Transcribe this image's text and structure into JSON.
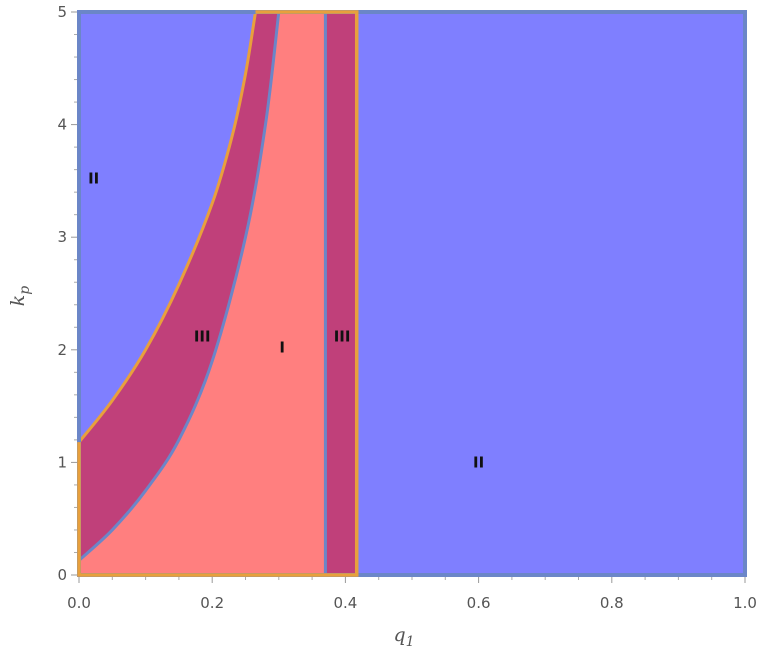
{
  "chart_data": {
    "type": "region",
    "xlabel": "q",
    "xlabel_sub": "1",
    "ylabel": "k",
    "ylabel_sub": "p",
    "xlim": [
      0,
      1
    ],
    "ylim": [
      0,
      5
    ],
    "x_ticks": [
      {
        "value": 0,
        "label": "0.0"
      },
      {
        "value": 0.2,
        "label": "0.2"
      },
      {
        "value": 0.4,
        "label": "0.4"
      },
      {
        "value": 0.6,
        "label": "0.6"
      },
      {
        "value": 0.8,
        "label": "0.8"
      },
      {
        "value": 1.0,
        "label": "1.0"
      }
    ],
    "y_ticks": [
      {
        "value": 0,
        "label": "0"
      },
      {
        "value": 1,
        "label": "1"
      },
      {
        "value": 2,
        "label": "2"
      },
      {
        "value": 3,
        "label": "3"
      },
      {
        "value": 4,
        "label": "4"
      },
      {
        "value": 5,
        "label": "5"
      }
    ],
    "colors": {
      "region_I": "#ff7f7f",
      "region_II": "#7f7fff",
      "region_III": "#c0407a",
      "boundary_orange": "#e8a03c",
      "boundary_blue": "#6b86c8"
    },
    "boundaries": {
      "outer_curve": [
        [
          0,
          1.18
        ],
        [
          0.05,
          1.55
        ],
        [
          0.1,
          2.0
        ],
        [
          0.15,
          2.58
        ],
        [
          0.2,
          3.3
        ],
        [
          0.23,
          3.9
        ],
        [
          0.25,
          4.45
        ],
        [
          0.265,
          5.0
        ]
      ],
      "inner_curve": [
        [
          0,
          0.13
        ],
        [
          0.05,
          0.4
        ],
        [
          0.1,
          0.75
        ],
        [
          0.15,
          1.2
        ],
        [
          0.2,
          1.9
        ],
        [
          0.25,
          3.0
        ],
        [
          0.28,
          4.0
        ],
        [
          0.3,
          5.0
        ]
      ],
      "strip_left": 0.37,
      "strip_right": 0.417
    },
    "region_labels": [
      {
        "text": "II",
        "x": 0.022,
        "y": 3.52
      },
      {
        "text": "III",
        "x": 0.185,
        "y": 2.12
      },
      {
        "text": "I",
        "x": 0.305,
        "y": 2.02
      },
      {
        "text": "III",
        "x": 0.395,
        "y": 2.12
      },
      {
        "text": "II",
        "x": 0.6,
        "y": 1.0
      }
    ]
  }
}
